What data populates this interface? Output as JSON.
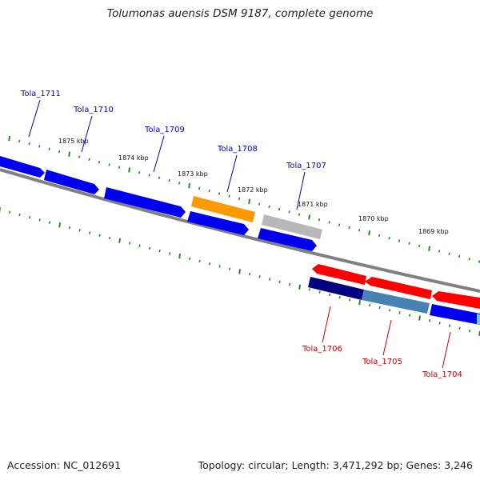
{
  "title": "Tolumonas auensis DSM 9187, complete genome",
  "footer": {
    "accession": "Accession: NC_012691",
    "stats": "Topology: circular; Length: 3,471,292 bp; Genes: 3,246"
  },
  "colors": {
    "forward_label": "#0000cc",
    "reverse_label": "#cc0000",
    "tick": "#228b22",
    "backbone": "#808080"
  },
  "kbp_labels": [
    "1875 kbp",
    "1874 kbp",
    "1873 kbp",
    "1872 kbp",
    "1871 kbp",
    "1870 kbp",
    "1869 kbp"
  ],
  "genes": [
    {
      "name": "Tola_1711",
      "strand": "forward"
    },
    {
      "name": "Tola_1710",
      "strand": "forward"
    },
    {
      "name": "Tola_1709",
      "strand": "forward"
    },
    {
      "name": "Tola_1708",
      "strand": "forward"
    },
    {
      "name": "Tola_1707",
      "strand": "forward"
    },
    {
      "name": "Tola_1706",
      "strand": "reverse"
    },
    {
      "name": "Tola_1705",
      "strand": "reverse"
    },
    {
      "name": "Tola_1704",
      "strand": "reverse"
    }
  ]
}
